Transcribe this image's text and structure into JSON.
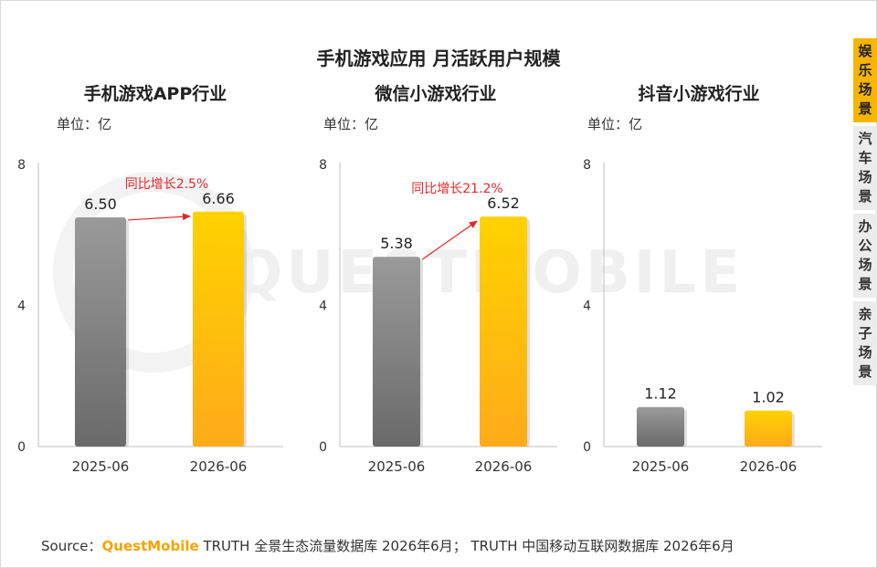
{
  "title": "手机游戏应用 月活跃用户规模",
  "watermark": "QUESTMOBILE",
  "unit_label": "单位：亿",
  "side_tabs": [
    "娱乐场景",
    "汽车场景",
    "办公场景",
    "亲子场景"
  ],
  "active_tab": "娱乐场景",
  "source": {
    "prefix": "Source：",
    "brand": "QuestMobile",
    "text": " TRUTH 全景生态流量数据库 2026年6月；  TRUTH 中国移动互联网数据库 2026年6月"
  },
  "colors": {
    "gray_bar_top": "#9a9a9a",
    "gray_bar_bottom": "#6a6a6a",
    "gold_bar_top": "#ffd200",
    "gold_bar_bottom": "#ffab1a",
    "arrow": "#e8262a",
    "tab_active": "#f7b500"
  },
  "chart_data": [
    {
      "type": "bar",
      "title": "手机游戏APP行业",
      "categories": [
        "2025-06",
        "2026-06"
      ],
      "values": [
        6.5,
        6.66
      ],
      "value_labels": [
        "6.50",
        "6.66"
      ],
      "ylim": [
        0,
        8
      ],
      "yticks": [
        0,
        4,
        8
      ],
      "annotation": "同比增长2.5%"
    },
    {
      "type": "bar",
      "title": "微信小游戏行业",
      "categories": [
        "2025-06",
        "2026-06"
      ],
      "values": [
        5.38,
        6.52
      ],
      "value_labels": [
        "5.38",
        "6.52"
      ],
      "ylim": [
        0,
        8
      ],
      "yticks": [
        0,
        4,
        8
      ],
      "annotation": "同比增长21.2%"
    },
    {
      "type": "bar",
      "title": "抖音小游戏行业",
      "categories": [
        "2025-06",
        "2026-06"
      ],
      "values": [
        1.12,
        1.02
      ],
      "value_labels": [
        "1.12",
        "1.02"
      ],
      "ylim": [
        0,
        8
      ],
      "yticks": [
        0,
        4,
        8
      ],
      "annotation": ""
    }
  ]
}
